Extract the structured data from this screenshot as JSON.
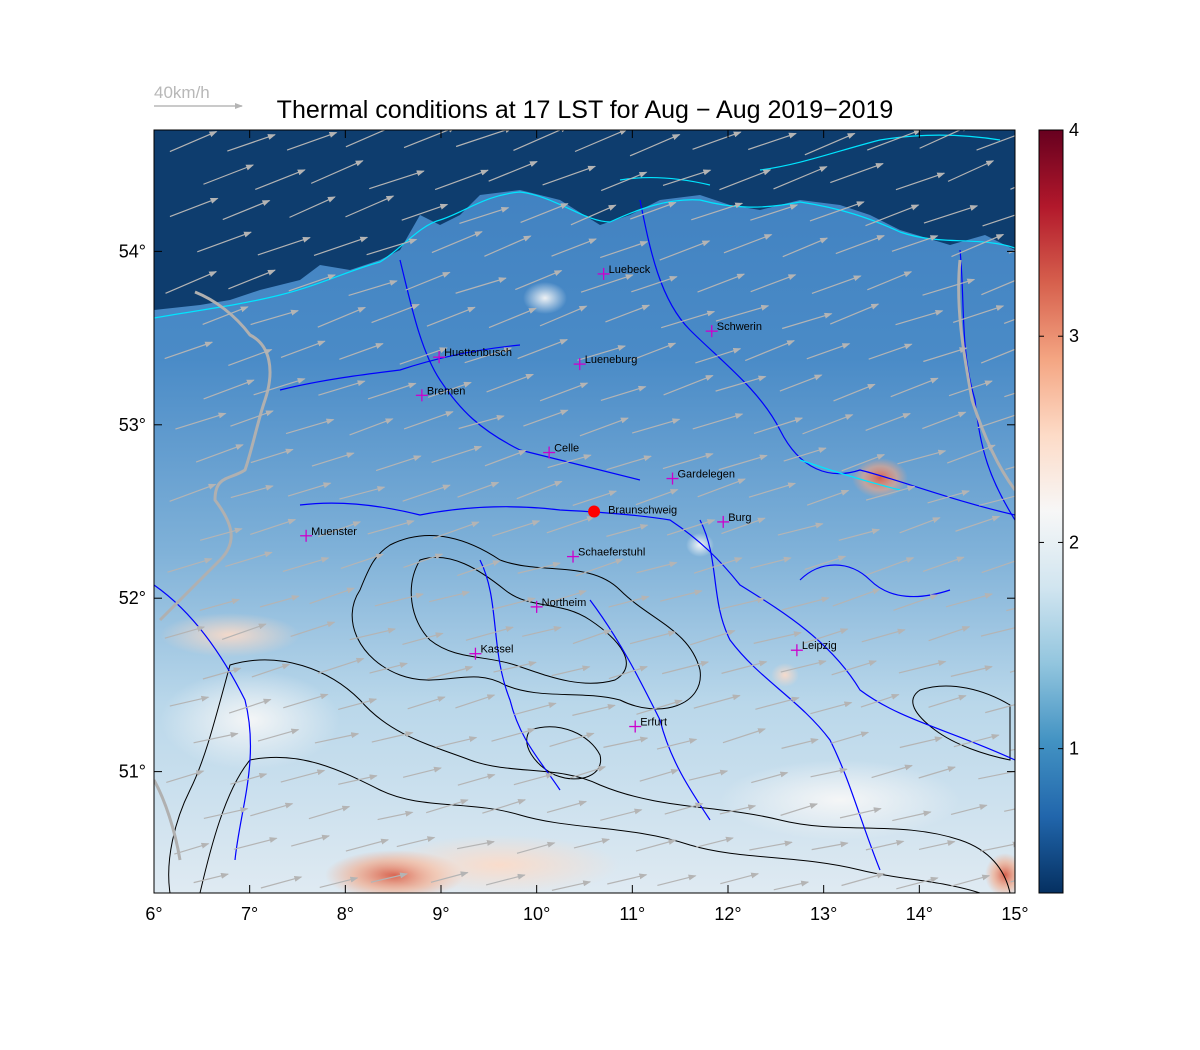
{
  "title": "Thermal conditions at 17 LST for Aug − Aug  2019−2019",
  "wind_legend": {
    "label": "40km/h"
  },
  "map": {
    "lon_range": [
      6,
      15
    ],
    "lat_range": [
      50.3,
      54.7
    ],
    "x_ticks": [
      "6°",
      "7°",
      "8°",
      "9°",
      "10°",
      "11°",
      "12°",
      "13°",
      "14°",
      "15°"
    ],
    "y_ticks": [
      "54°",
      "53°",
      "52°",
      "51°"
    ],
    "x_tick_values": [
      6,
      7,
      8,
      9,
      10,
      11,
      12,
      13,
      14,
      15
    ],
    "y_tick_values": [
      54,
      53,
      52,
      51
    ],
    "wind_direction": "west-southwest",
    "colors": {
      "river": "#0000ff",
      "coastline": "#00ffff",
      "border": "#b0b0b0",
      "contour": "#000000",
      "city_marker": "#cc00cc",
      "site_marker": "#ff0000"
    },
    "cities": [
      {
        "name": "Luebeck",
        "lon": 10.7,
        "lat": 53.87
      },
      {
        "name": "Schwerin",
        "lon": 11.83,
        "lat": 53.54
      },
      {
        "name": "Huettenbusch",
        "lon": 8.98,
        "lat": 53.39
      },
      {
        "name": "Lueneburg",
        "lon": 10.45,
        "lat": 53.35
      },
      {
        "name": "Bremen",
        "lon": 8.8,
        "lat": 53.17
      },
      {
        "name": "Celle",
        "lon": 10.13,
        "lat": 52.84
      },
      {
        "name": "Gardelegen",
        "lon": 11.42,
        "lat": 52.69
      },
      {
        "name": "Braunschweig",
        "lon": 10.6,
        "lat": 52.5,
        "site": true
      },
      {
        "name": "Burg",
        "lon": 11.95,
        "lat": 52.44
      },
      {
        "name": "Muenster",
        "lon": 7.59,
        "lat": 52.36
      },
      {
        "name": "Schaeferstuhl",
        "lon": 10.38,
        "lat": 52.24
      },
      {
        "name": "Northeim",
        "lon": 10.0,
        "lat": 51.95
      },
      {
        "name": "Kassel",
        "lon": 9.36,
        "lat": 51.68
      },
      {
        "name": "Leipzig",
        "lon": 12.72,
        "lat": 51.7
      },
      {
        "name": "Erfurt",
        "lon": 11.03,
        "lat": 51.26
      }
    ]
  },
  "colorbar": {
    "range": [
      0.3,
      4.0
    ],
    "ticks": [
      "1",
      "2",
      "3",
      "4"
    ],
    "tick_values": [
      1,
      2,
      3,
      4
    ],
    "colors": [
      "#053061",
      "#2166ac",
      "#4393c3",
      "#92c5de",
      "#d1e5f0",
      "#f7f7f7",
      "#fddbc7",
      "#f4a582",
      "#d6604d",
      "#b2182b",
      "#67001f"
    ]
  }
}
